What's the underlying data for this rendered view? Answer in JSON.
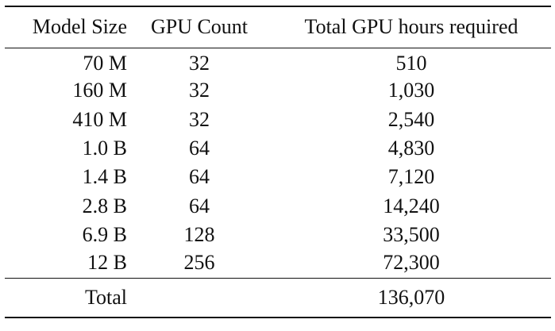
{
  "table": {
    "headers": {
      "model_size": "Model Size",
      "gpu_count": "GPU Count",
      "gpu_hours": "Total GPU hours required"
    },
    "rows": [
      {
        "model_size": "70 M",
        "gpu_count": "32",
        "gpu_hours": "510"
      },
      {
        "model_size": "160 M",
        "gpu_count": "32",
        "gpu_hours": "1,030"
      },
      {
        "model_size": "410 M",
        "gpu_count": "32",
        "gpu_hours": "2,540"
      },
      {
        "model_size": "1.0 B",
        "gpu_count": "64",
        "gpu_hours": "4,830"
      },
      {
        "model_size": "1.4 B",
        "gpu_count": "64",
        "gpu_hours": "7,120"
      },
      {
        "model_size": "2.8 B",
        "gpu_count": "64",
        "gpu_hours": "14,240"
      },
      {
        "model_size": "6.9 B",
        "gpu_count": "128",
        "gpu_hours": "33,500"
      },
      {
        "model_size": "12 B",
        "gpu_count": "256",
        "gpu_hours": "72,300"
      }
    ],
    "total": {
      "label": "Total",
      "gpu_count": "",
      "gpu_hours": "136,070"
    }
  }
}
